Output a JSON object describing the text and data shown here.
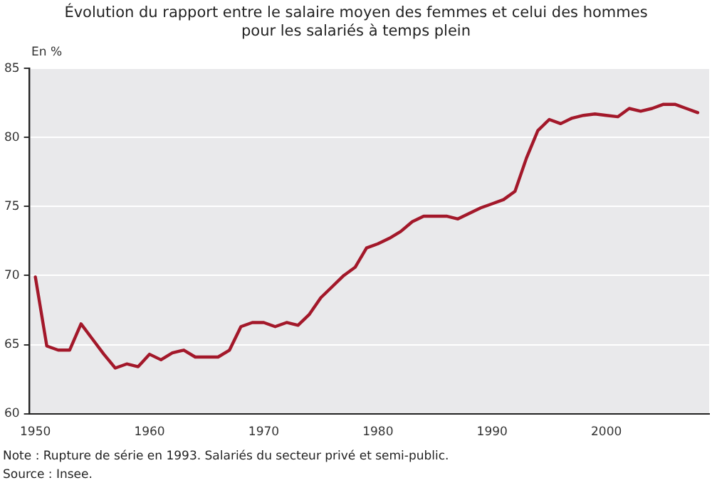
{
  "chart_data": {
    "type": "line",
    "title": "Évolution du rapport entre le salaire moyen des femmes et celui des hommes\npour les salariés à temps plein",
    "ylabel": "En %",
    "x": [
      1950,
      1951,
      1952,
      1953,
      1954,
      1955,
      1956,
      1957,
      1958,
      1959,
      1960,
      1961,
      1962,
      1963,
      1964,
      1965,
      1966,
      1967,
      1968,
      1969,
      1970,
      1971,
      1972,
      1973,
      1974,
      1975,
      1976,
      1977,
      1978,
      1979,
      1980,
      1981,
      1982,
      1983,
      1984,
      1985,
      1986,
      1987,
      1988,
      1989,
      1990,
      1991,
      1992,
      1993,
      1994,
      1995,
      1996,
      1997,
      1998,
      1999,
      2000,
      2001,
      2002,
      2003,
      2004,
      2005,
      2006,
      2007,
      2008
    ],
    "series": [
      {
        "color": "#a3182a",
        "values": [
          69.9,
          64.9,
          64.6,
          64.6,
          66.5,
          65.4,
          64.3,
          63.3,
          63.6,
          63.4,
          64.3,
          63.9,
          64.4,
          64.6,
          64.1,
          64.1,
          64.1,
          64.6,
          66.3,
          66.6,
          66.6,
          66.3,
          66.6,
          66.4,
          67.2,
          68.4,
          69.2,
          70.0,
          70.6,
          72.0,
          72.3,
          72.7,
          73.2,
          73.9,
          74.3,
          74.3,
          74.3,
          74.1,
          74.5,
          74.9,
          75.2,
          75.5,
          76.1,
          78.5,
          80.5,
          81.3,
          81.0,
          81.4,
          81.6,
          81.7,
          81.6,
          81.5,
          82.1,
          81.9,
          82.1,
          82.4,
          82.4,
          82.1,
          81.8
        ]
      }
    ],
    "xlim": [
      1949.5,
      2009
    ],
    "xticks": [
      1950,
      1960,
      1970,
      1980,
      1990,
      2000
    ],
    "ylim": [
      60,
      85
    ],
    "yticks": [
      60,
      65,
      70,
      75,
      80,
      85
    ],
    "grid": "y",
    "legend": false,
    "marker": "none",
    "line_style": "solid",
    "annotations": [
      "Note : Rupture de série en 1993. Salariés du secteur privé et semi-public.",
      "Source : Insee."
    ]
  }
}
